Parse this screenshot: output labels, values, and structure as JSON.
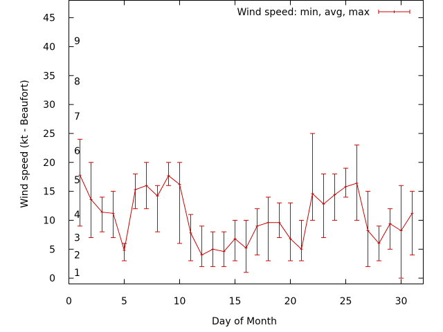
{
  "chart_data": {
    "type": "line",
    "title": "",
    "xlabel": "Day of Month",
    "ylabel": "Wind speed (kt - Beaufort)",
    "xlim": [
      0,
      32
    ],
    "ylim": [
      -1,
      48
    ],
    "xticks": [
      0,
      5,
      10,
      15,
      20,
      25,
      30
    ],
    "yticks": [
      0,
      5,
      10,
      15,
      20,
      25,
      30,
      35,
      40,
      45
    ],
    "grid": false,
    "legend_position": "top-right",
    "beaufort_labels": [
      {
        "label": "1",
        "value": 1
      },
      {
        "label": "2",
        "value": 4
      },
      {
        "label": "3",
        "value": 7
      },
      {
        "label": "4",
        "value": 11
      },
      {
        "label": "5",
        "value": 17
      },
      {
        "label": "6",
        "value": 22
      },
      {
        "label": "7",
        "value": 28
      },
      {
        "label": "8",
        "value": 34
      },
      {
        "label": "9",
        "value": 41
      }
    ],
    "series": [
      {
        "name": "Wind speed: min, avg, max",
        "color": "#cc0000",
        "x": [
          1,
          2,
          3,
          4,
          5,
          6,
          7,
          8,
          9,
          10,
          11,
          12,
          13,
          14,
          15,
          16,
          17,
          18,
          19,
          20,
          21,
          22,
          23,
          24,
          25,
          26,
          27,
          28,
          29,
          30,
          31
        ],
        "avg": [
          17.8,
          13.6,
          11.4,
          11.2,
          4.8,
          15.3,
          16.0,
          14.2,
          17.7,
          16.2,
          7.8,
          4.0,
          5.0,
          4.6,
          6.8,
          5.2,
          9.0,
          9.6,
          9.6,
          6.8,
          5.0,
          14.6,
          12.8,
          14.4,
          15.8,
          16.4,
          8.2,
          6.0,
          9.4,
          8.2,
          11.2
        ],
        "min": [
          9,
          7,
          8,
          7,
          3,
          12,
          12,
          8,
          16,
          6,
          3,
          2,
          2,
          2,
          3,
          1,
          4,
          3,
          7,
          3,
          3,
          10,
          7,
          10,
          14,
          10,
          2,
          3,
          5,
          0,
          4
        ],
        "max": [
          24,
          20,
          14,
          15,
          6,
          18,
          20,
          16,
          20,
          20,
          11,
          9,
          8,
          8,
          10,
          10,
          12,
          14,
          13,
          13,
          10,
          25,
          18,
          18,
          19,
          23,
          15,
          9,
          12,
          16,
          15
        ]
      }
    ]
  }
}
